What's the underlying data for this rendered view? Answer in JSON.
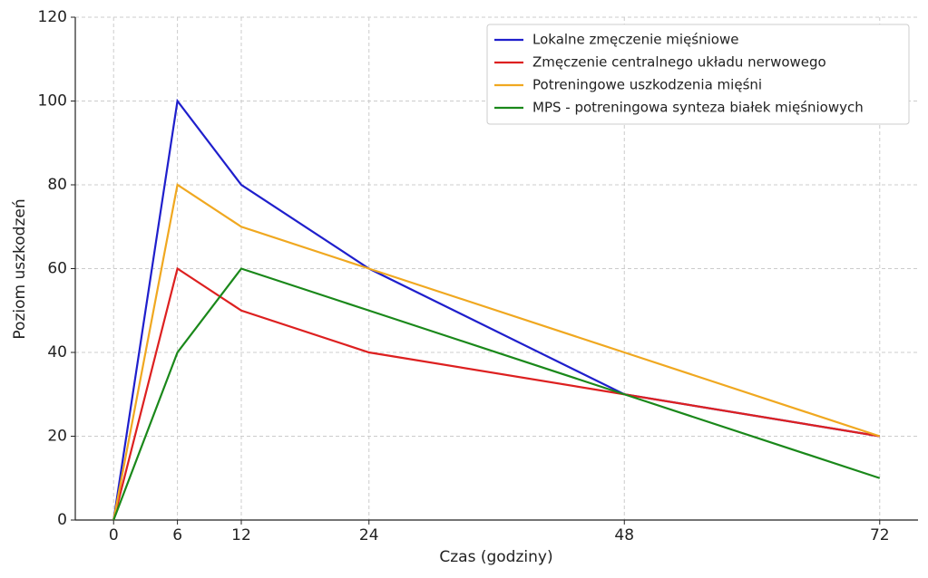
{
  "chart_data": {
    "type": "line",
    "x_label": "Czas (godziny)",
    "y_label": "Poziom uszkodzeń",
    "x": [
      0,
      6,
      12,
      24,
      48,
      72
    ],
    "series": [
      {
        "name": "Lokalne zmęczenie mięśniowe",
        "color": "#1f1fcc",
        "values": [
          0,
          100,
          80,
          60,
          30,
          20
        ]
      },
      {
        "name": "Zmęczenie centralnego układu nerwowego",
        "color": "#dd2020",
        "values": [
          0,
          60,
          50,
          40,
          30,
          20
        ]
      },
      {
        "name": "Potreningowe uszkodzenia mięśni",
        "color": "#f0a820",
        "values": [
          0,
          80,
          70,
          60,
          40,
          20
        ]
      },
      {
        "name": "MPS - potreningowa synteza białek mięśniowych",
        "color": "#1a881a",
        "values": [
          0,
          40,
          60,
          50,
          30,
          10
        ]
      }
    ],
    "xlim": [
      -3.6,
      75.6
    ],
    "ylim": [
      0,
      120
    ],
    "xticks": [
      0,
      6,
      12,
      24,
      48,
      72
    ],
    "yticks": [
      0,
      20,
      40,
      60,
      80,
      100,
      120
    ],
    "grid": true,
    "legend": "upper right"
  }
}
